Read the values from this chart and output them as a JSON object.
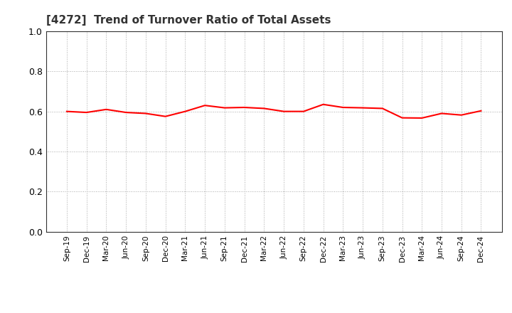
{
  "title": "[4272]  Trend of Turnover Ratio of Total Assets",
  "title_fontsize": 11,
  "line_color": "#FF0000",
  "line_width": 1.5,
  "background_color": "#FFFFFF",
  "ylim": [
    0.0,
    1.0
  ],
  "yticks": [
    0.0,
    0.2,
    0.4,
    0.6,
    0.8,
    1.0
  ],
  "x_labels": [
    "Sep-19",
    "Dec-19",
    "Mar-20",
    "Jun-20",
    "Sep-20",
    "Dec-20",
    "Mar-21",
    "Jun-21",
    "Sep-21",
    "Dec-21",
    "Mar-22",
    "Jun-22",
    "Sep-22",
    "Dec-22",
    "Mar-23",
    "Jun-23",
    "Sep-23",
    "Dec-23",
    "Mar-24",
    "Jun-24",
    "Sep-24",
    "Dec-24"
  ],
  "values": [
    0.6,
    0.595,
    0.61,
    0.595,
    0.59,
    0.575,
    0.6,
    0.63,
    0.618,
    0.62,
    0.615,
    0.6,
    0.6,
    0.635,
    0.62,
    0.618,
    0.615,
    0.568,
    0.567,
    0.59,
    0.582,
    0.603
  ]
}
